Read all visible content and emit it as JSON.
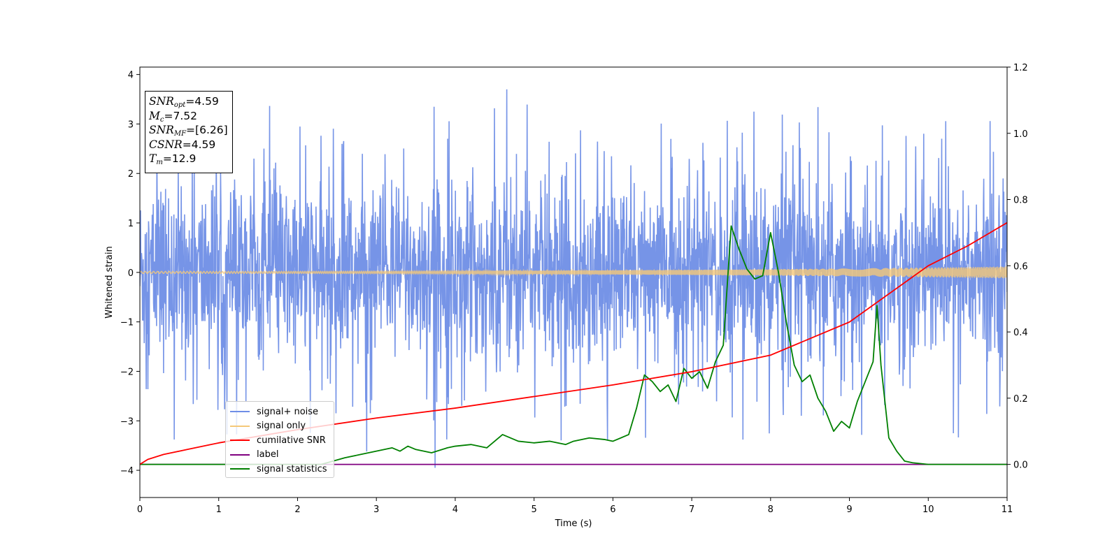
{
  "info_box": {
    "snr_opt": {
      "sym": "SNR",
      "sub": "opt",
      "value": "=4.59"
    },
    "mc": {
      "sym": "M",
      "sub": "c",
      "value": "=7.52"
    },
    "snr_mf": {
      "sym": "SNR",
      "sub": "MF",
      "value": "=[6.26]"
    },
    "csnr": {
      "sym": "CSNR",
      "sub": "",
      "value": "=4.59"
    },
    "tm": {
      "sym": "T",
      "sub": "m",
      "value": "=12.9"
    }
  },
  "chart_data": {
    "type": "line",
    "xlabel": "Time (s)",
    "ylabel": "Whitened strain",
    "xlim": [
      0,
      11
    ],
    "ylim_left": [
      -4.55,
      4.15
    ],
    "ylim_right": [
      -0.1,
      1.2
    ],
    "x_ticks": [
      0,
      1,
      2,
      3,
      4,
      5,
      6,
      7,
      8,
      9,
      10,
      11
    ],
    "y_ticks_left": [
      -4,
      -3,
      -2,
      -1,
      0,
      1,
      2,
      3,
      4
    ],
    "y_ticks_right": [
      "0.0",
      "0.2",
      "0.4",
      "0.6",
      "0.8",
      "1.0",
      "1.2"
    ],
    "tick_label_left": {
      "-4": "−4",
      "-3": "−3",
      "-2": "−2",
      "-1": "−1",
      "0": "0",
      "1": "1",
      "2": "2",
      "3": "3",
      "4": "4"
    },
    "legend_placement": "lower-left",
    "grid": false,
    "series": [
      {
        "name": "signal+ noise",
        "axis": "left",
        "color": "#6f8ee6",
        "description_values": {
          "noise_sigma": 0.9,
          "spikes_max": 3.7,
          "spikes_min": -3.95
        }
      },
      {
        "name": "signal only",
        "axis": "left",
        "color": "#f5c879",
        "envelope_start": 0.02,
        "envelope_end": 0.12
      },
      {
        "name": "cumilative SNR",
        "axis": "right",
        "color": "#ff0000",
        "x": [
          0,
          0.1,
          0.3,
          0.6,
          1,
          2,
          3,
          4,
          5,
          6,
          7,
          8,
          9,
          10,
          10.5,
          11
        ],
        "y": [
          0.0,
          0.015,
          0.03,
          0.045,
          0.065,
          0.105,
          0.14,
          0.17,
          0.205,
          0.24,
          0.28,
          0.33,
          0.43,
          0.6,
          0.66,
          0.73
        ]
      },
      {
        "name": "label",
        "axis": "right",
        "color": "#800080",
        "x": [
          0,
          11
        ],
        "y": [
          0.0,
          0.0
        ]
      },
      {
        "name": "signal statistics",
        "axis": "right",
        "color": "#008000",
        "x": [
          0,
          2.3,
          2.6,
          2.8,
          3.0,
          3.2,
          3.3,
          3.4,
          3.5,
          3.7,
          3.9,
          4.0,
          4.2,
          4.4,
          4.6,
          4.7,
          4.8,
          5.0,
          5.2,
          5.4,
          5.5,
          5.7,
          5.9,
          6.0,
          6.2,
          6.3,
          6.4,
          6.5,
          6.6,
          6.7,
          6.8,
          6.9,
          7.0,
          7.1,
          7.2,
          7.3,
          7.4,
          7.5,
          7.6,
          7.7,
          7.8,
          7.9,
          8.0,
          8.1,
          8.2,
          8.3,
          8.4,
          8.5,
          8.6,
          8.7,
          8.8,
          8.9,
          9.0,
          9.1,
          9.2,
          9.3,
          9.35,
          9.4,
          9.5,
          9.6,
          9.7,
          9.8,
          10.0,
          11
        ],
        "y": [
          0.0,
          0.0,
          0.02,
          0.03,
          0.04,
          0.05,
          0.04,
          0.055,
          0.045,
          0.035,
          0.05,
          0.055,
          0.06,
          0.05,
          0.09,
          0.08,
          0.07,
          0.065,
          0.07,
          0.06,
          0.07,
          0.08,
          0.075,
          0.07,
          0.09,
          0.17,
          0.27,
          0.25,
          0.22,
          0.24,
          0.19,
          0.29,
          0.26,
          0.28,
          0.23,
          0.31,
          0.36,
          0.72,
          0.65,
          0.59,
          0.56,
          0.57,
          0.7,
          0.58,
          0.43,
          0.3,
          0.25,
          0.27,
          0.2,
          0.16,
          0.1,
          0.13,
          0.11,
          0.19,
          0.25,
          0.31,
          0.48,
          0.3,
          0.08,
          0.04,
          0.01,
          0.005,
          0.0,
          0.0
        ]
      }
    ]
  },
  "legend": {
    "items": [
      {
        "label": "signal+ noise",
        "color": "#6f8ee6"
      },
      {
        "label": "signal only",
        "color": "#f5c879"
      },
      {
        "label": "cumilative SNR",
        "color": "#ff0000"
      },
      {
        "label": "label",
        "color": "#800080"
      },
      {
        "label": "signal statistics",
        "color": "#008000"
      }
    ]
  }
}
